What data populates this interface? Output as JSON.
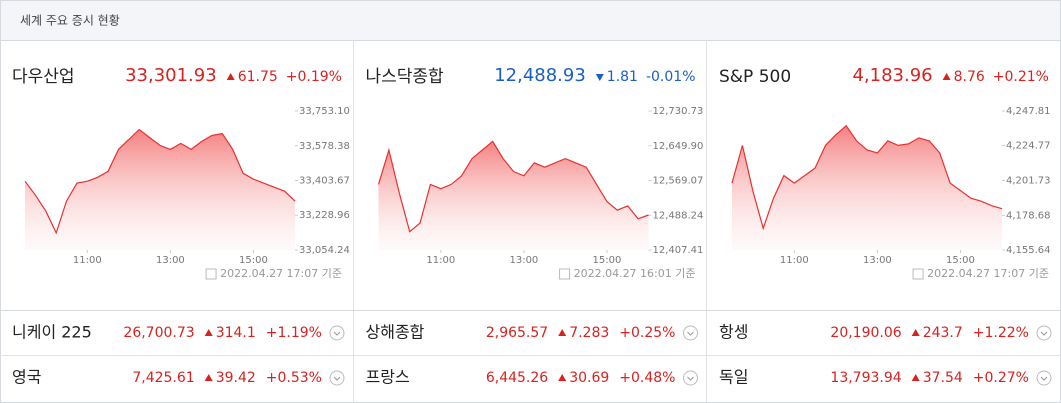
{
  "header": {
    "title": "세계 주요 증시 현황"
  },
  "chart_data": [
    {
      "type": "line",
      "name": "다우산업",
      "price": "33,301.93",
      "change": "61.75",
      "change_pct": "+0.19%",
      "direction": "up",
      "color": "#d7231f",
      "line_color": "#e8312f",
      "timestamp": "2022.04.27 17:07 기준",
      "x": [
        9.5,
        9.75,
        10.0,
        10.25,
        10.5,
        10.75,
        11.0,
        11.25,
        11.5,
        11.75,
        12.0,
        12.25,
        12.5,
        12.75,
        13.0,
        13.25,
        13.5,
        13.75,
        14.0,
        14.25,
        14.5,
        14.75,
        15.0,
        15.25,
        15.5,
        15.75,
        16.0
      ],
      "values": [
        33400,
        33330,
        33250,
        33140,
        33300,
        33390,
        33400,
        33420,
        33450,
        33560,
        33610,
        33660,
        33620,
        33580,
        33560,
        33590,
        33560,
        33600,
        33630,
        33640,
        33560,
        33440,
        33410,
        33390,
        33370,
        33350,
        33300
      ],
      "xlim": [
        9.5,
        16.0
      ],
      "xticks": [
        {
          "value": 11,
          "label": "11:00"
        },
        {
          "value": 13,
          "label": "13:00"
        },
        {
          "value": 15,
          "label": "15:00"
        }
      ],
      "ylim": [
        33054.24,
        33753.1
      ],
      "yticks": [
        {
          "value": 33753.1,
          "label": "33,753.10"
        },
        {
          "value": 33578.38,
          "label": "33,578.38"
        },
        {
          "value": 33403.67,
          "label": "33,403.67"
        },
        {
          "value": 33228.96,
          "label": "33,228.96"
        },
        {
          "value": 33054.24,
          "label": "33,054.24"
        }
      ]
    },
    {
      "type": "line",
      "name": "나스닥종합",
      "price": "12,488.93",
      "change": "1.81",
      "change_pct": "-0.01%",
      "direction": "down",
      "color": "#1a5fc6",
      "line_color": "#e8312f",
      "timestamp": "2022.04.27 16:01 기준",
      "x": [
        9.5,
        9.75,
        10.0,
        10.25,
        10.5,
        10.75,
        11.0,
        11.25,
        11.5,
        11.75,
        12.0,
        12.25,
        12.5,
        12.75,
        13.0,
        13.25,
        13.5,
        13.75,
        14.0,
        14.25,
        14.5,
        14.75,
        15.0,
        15.25,
        15.5,
        15.75,
        16.0
      ],
      "values": [
        12560,
        12640,
        12540,
        12450,
        12470,
        12560,
        12550,
        12560,
        12580,
        12620,
        12640,
        12660,
        12620,
        12590,
        12580,
        12610,
        12600,
        12610,
        12620,
        12610,
        12600,
        12560,
        12520,
        12500,
        12510,
        12480,
        12488.93
      ],
      "xlim": [
        9.5,
        16.0
      ],
      "xticks": [
        {
          "value": 11,
          "label": "11:00"
        },
        {
          "value": 13,
          "label": "13:00"
        },
        {
          "value": 15,
          "label": "15:00"
        }
      ],
      "ylim": [
        12407.41,
        12730.73
      ],
      "yticks": [
        {
          "value": 12730.73,
          "label": "12,730.73"
        },
        {
          "value": 12649.9,
          "label": "12,649.90"
        },
        {
          "value": 12569.07,
          "label": "12,569.07"
        },
        {
          "value": 12488.24,
          "label": "12,488.24"
        },
        {
          "value": 12407.41,
          "label": "12,407.41"
        }
      ]
    },
    {
      "type": "line",
      "name": "S&P 500",
      "price": "4,183.96",
      "change": "8.76",
      "change_pct": "+0.21%",
      "direction": "up",
      "color": "#d7231f",
      "line_color": "#e8312f",
      "timestamp": "2022.04.27 17:07 기준",
      "x": [
        9.5,
        9.75,
        10.0,
        10.25,
        10.5,
        10.75,
        11.0,
        11.25,
        11.5,
        11.75,
        12.0,
        12.25,
        12.5,
        12.75,
        13.0,
        13.25,
        13.5,
        13.75,
        14.0,
        14.25,
        14.5,
        14.75,
        15.0,
        15.25,
        15.5,
        15.75,
        16.0
      ],
      "values": [
        4200,
        4225,
        4195,
        4170,
        4190,
        4205,
        4200,
        4205,
        4210,
        4225,
        4232,
        4238,
        4228,
        4222,
        4220,
        4228,
        4225,
        4226,
        4230,
        4228,
        4220,
        4200,
        4195,
        4190,
        4188,
        4185,
        4183
      ],
      "xlim": [
        9.5,
        16.0
      ],
      "xticks": [
        {
          "value": 11,
          "label": "11:00"
        },
        {
          "value": 13,
          "label": "13:00"
        },
        {
          "value": 15,
          "label": "15:00"
        }
      ],
      "ylim": [
        4155.64,
        4247.81
      ],
      "yticks": [
        {
          "value": 4247.81,
          "label": "4,247.81"
        },
        {
          "value": 4224.77,
          "label": "4,224.77"
        },
        {
          "value": 4201.73,
          "label": "4,201.73"
        },
        {
          "value": 4178.68,
          "label": "4,178.68"
        },
        {
          "value": 4155.64,
          "label": "4,155.64"
        }
      ]
    }
  ],
  "market_rows": [
    [
      {
        "name": "니케이 225",
        "price": "26,700.73",
        "change": "314.1",
        "change_pct": "+1.19%"
      },
      {
        "name": "상해종합",
        "price": "2,965.57",
        "change": "7.283",
        "change_pct": "+0.25%"
      },
      {
        "name": "항셍",
        "price": "20,190.06",
        "change": "243.7",
        "change_pct": "+1.22%"
      }
    ],
    [
      {
        "name": "영국",
        "price": "7,425.61",
        "change": "39.42",
        "change_pct": "+0.53%"
      },
      {
        "name": "프랑스",
        "price": "6,445.26",
        "change": "30.69",
        "change_pct": "+0.48%"
      },
      {
        "name": "독일",
        "price": "13,793.94",
        "change": "37.54",
        "change_pct": "+0.27%"
      }
    ]
  ]
}
